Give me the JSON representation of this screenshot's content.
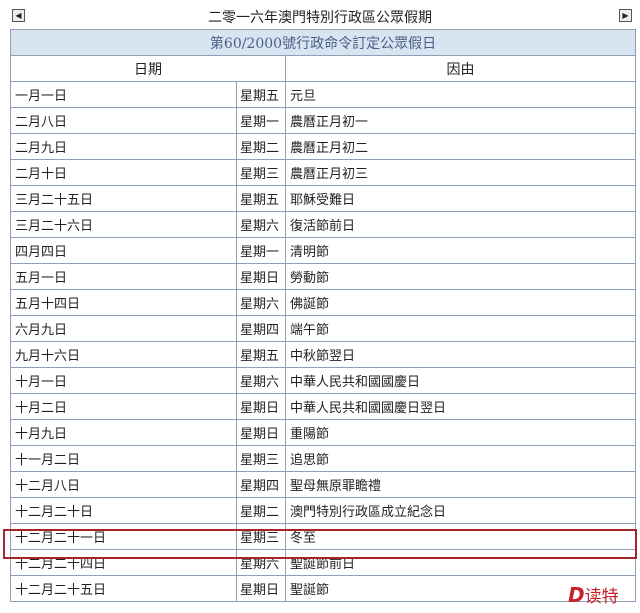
{
  "title": "二零一六年澳門特別行政區公眾假期",
  "subtitle": "第60/2000號行政命令訂定公眾假日",
  "columns": {
    "date": "日期",
    "reason": "因由"
  },
  "rows": [
    {
      "date": "一月一日",
      "weekday": "星期五",
      "reason": "元旦"
    },
    {
      "date": "二月八日",
      "weekday": "星期一",
      "reason": "農曆正月初一"
    },
    {
      "date": "二月九日",
      "weekday": "星期二",
      "reason": "農曆正月初二"
    },
    {
      "date": "二月十日",
      "weekday": "星期三",
      "reason": "農曆正月初三"
    },
    {
      "date": "三月二十五日",
      "weekday": "星期五",
      "reason": "耶穌受難日"
    },
    {
      "date": "三月二十六日",
      "weekday": "星期六",
      "reason": "復活節前日"
    },
    {
      "date": "四月四日",
      "weekday": "星期一",
      "reason": "清明節"
    },
    {
      "date": "五月一日",
      "weekday": "星期日",
      "reason": "勞動節"
    },
    {
      "date": "五月十四日",
      "weekday": "星期六",
      "reason": "佛誕節"
    },
    {
      "date": "六月九日",
      "weekday": "星期四",
      "reason": "端午節"
    },
    {
      "date": "九月十六日",
      "weekday": "星期五",
      "reason": "中秋節翌日"
    },
    {
      "date": "十月一日",
      "weekday": "星期六",
      "reason": "中華人民共和國國慶日"
    },
    {
      "date": "十月二日",
      "weekday": "星期日",
      "reason": "中華人民共和國國慶日翌日"
    },
    {
      "date": "十月九日",
      "weekday": "星期日",
      "reason": "重陽節"
    },
    {
      "date": "十一月二日",
      "weekday": "星期三",
      "reason": "追思節"
    },
    {
      "date": "十二月八日",
      "weekday": "星期四",
      "reason": "聖母無原罪瞻禮"
    },
    {
      "date": "十二月二十日",
      "weekday": "星期二",
      "reason": "澳門特別行政區成立紀念日"
    },
    {
      "date": "十二月二十一日",
      "weekday": "星期三",
      "reason": "冬至"
    },
    {
      "date": "十二月二十四日",
      "weekday": "星期六",
      "reason": "聖誕節前日"
    },
    {
      "date": "十二月二十五日",
      "weekday": "星期日",
      "reason": "聖誕節"
    }
  ],
  "highlighted_row": "十二月二十一日",
  "logo": "D读特",
  "colors": {
    "band": "#d9e4f1",
    "highlight": "#a3242a",
    "logo": "#c8202a"
  }
}
